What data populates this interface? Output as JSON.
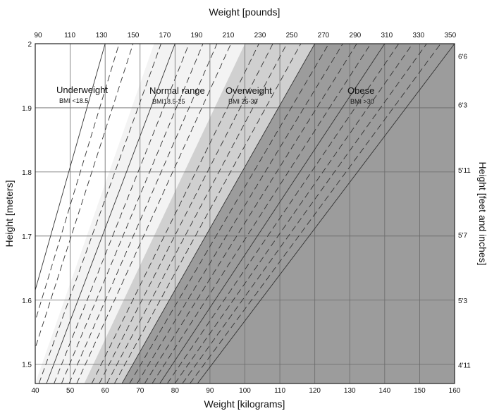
{
  "chart_data": {
    "type": "area",
    "title": "",
    "xlabel_bottom": "Weight [kilograms]",
    "xlabel_top": "Weight [pounds]",
    "ylabel_left": "Height [meters]",
    "ylabel_right": "Height [feet and inches]",
    "xlim": [
      40,
      160
    ],
    "ylim": [
      1.47,
      2.0
    ],
    "grid": true,
    "x_ticks_bottom": [
      40,
      50,
      60,
      70,
      80,
      90,
      100,
      110,
      120,
      130,
      140,
      150,
      160
    ],
    "y_ticks_left": [
      {
        "value": 1.5,
        "label": "1.5"
      },
      {
        "value": 1.6,
        "label": "1.6"
      },
      {
        "value": 1.7,
        "label": "1.7"
      },
      {
        "value": 1.8,
        "label": "1.8"
      },
      {
        "value": 1.9,
        "label": "1.9"
      },
      {
        "value": 2.0,
        "label": "2"
      }
    ],
    "x_ticks_top": [
      {
        "label": "90",
        "kg": 40.82
      },
      {
        "label": "110",
        "kg": 49.9
      },
      {
        "label": "130",
        "kg": 58.97
      },
      {
        "label": "150",
        "kg": 68.04
      },
      {
        "label": "170",
        "kg": 77.11
      },
      {
        "label": "190",
        "kg": 86.18
      },
      {
        "label": "210",
        "kg": 95.25
      },
      {
        "label": "230",
        "kg": 104.33
      },
      {
        "label": "250",
        "kg": 113.4
      },
      {
        "label": "270",
        "kg": 122.47
      },
      {
        "label": "290",
        "kg": 131.54
      },
      {
        "label": "310",
        "kg": 140.61
      },
      {
        "label": "330",
        "kg": 149.69
      },
      {
        "label": "350",
        "kg": 158.76
      }
    ],
    "y_ticks_right": [
      {
        "label": "4'11",
        "m": 1.499
      },
      {
        "label": "5'3",
        "m": 1.6
      },
      {
        "label": "5'7",
        "m": 1.702
      },
      {
        "label": "5'11",
        "m": 1.803
      },
      {
        "label": "6'3",
        "m": 1.905
      },
      {
        "label": "6'6",
        "m": 1.981
      }
    ],
    "categories": [
      {
        "name": "Underweight",
        "range": "BMI <18.5",
        "bmi_min": 0,
        "bmi_max": 18.5,
        "color": "#ffffff"
      },
      {
        "name": "Normal range",
        "range": "BMI18.5-25",
        "bmi_min": 18.5,
        "bmi_max": 25,
        "color": "#f3f3f3"
      },
      {
        "name": "Overweight",
        "range": "BMI 25-30",
        "bmi_min": 25,
        "bmi_max": 30,
        "color": "#d0d0d0"
      },
      {
        "name": "Obese",
        "range": "BMI >30",
        "bmi_min": 30,
        "bmi_max": 100,
        "color": "#9c9c9c"
      }
    ],
    "bmi_solid_lines": [
      15,
      20,
      30,
      35,
      40
    ],
    "bmi_dashed_lines": [
      16,
      17,
      19,
      21,
      22,
      23,
      24,
      26,
      27,
      28,
      29,
      31,
      32,
      33,
      34,
      36,
      37,
      38,
      39
    ]
  }
}
